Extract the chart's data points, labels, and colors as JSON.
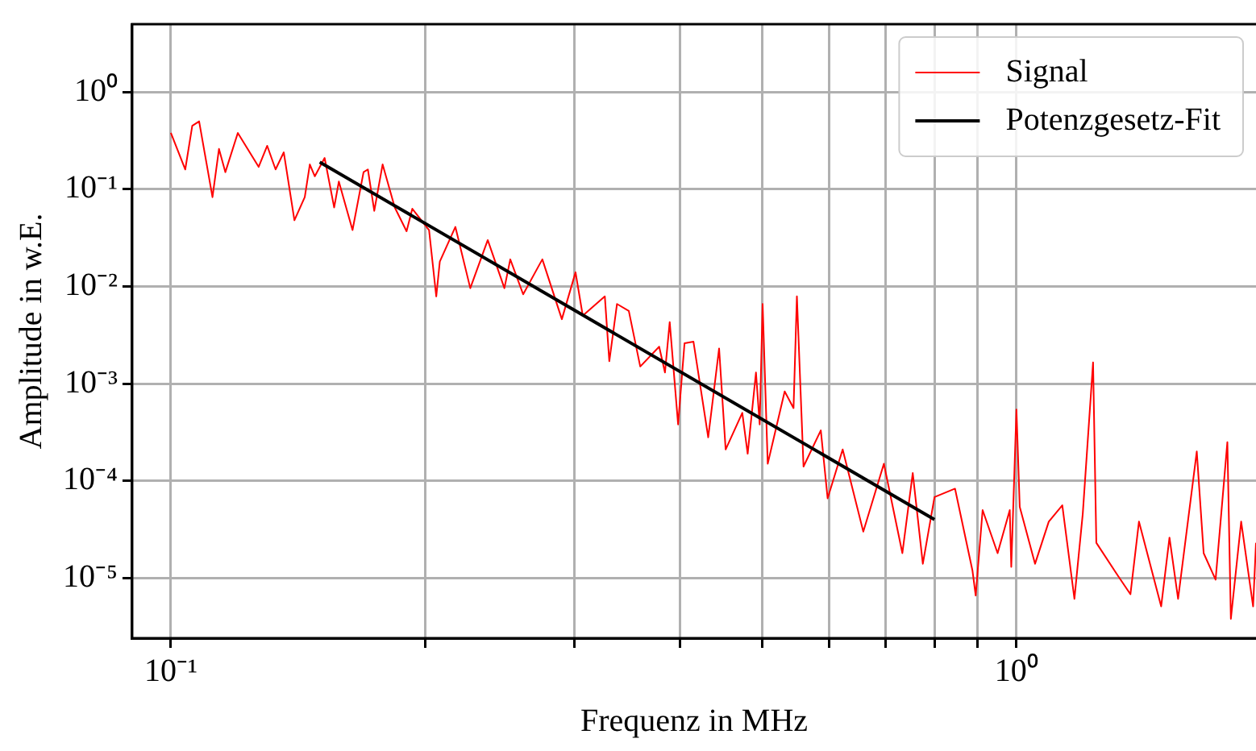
{
  "chart_data": {
    "type": "line",
    "xlabel": "Frequenz in MHz",
    "ylabel": "Amplitude in w.E.",
    "log": "xy",
    "grid": true,
    "legend": "top right",
    "xlim": [
      0.09,
      1.92
    ],
    "ylim": [
      2.4e-06,
      5
    ],
    "xticks": [
      {
        "value": 0.1,
        "label": "10⁻¹"
      },
      {
        "value": 0.2,
        "label": null
      },
      {
        "value": 0.3,
        "label": null
      },
      {
        "value": 0.4,
        "label": null
      },
      {
        "value": 0.5,
        "label": null
      },
      {
        "value": 0.6,
        "label": null
      },
      {
        "value": 0.7,
        "label": null
      },
      {
        "value": 0.8,
        "label": null
      },
      {
        "value": 0.9,
        "label": null
      },
      {
        "value": 1,
        "label": "10⁰"
      }
    ],
    "yticks": [
      {
        "value": 1e-05,
        "label": "10⁻⁵"
      },
      {
        "value": 0.0001,
        "label": "10⁻⁴"
      },
      {
        "value": 0.001,
        "label": "10⁻³"
      },
      {
        "value": 0.01,
        "label": "10⁻²"
      },
      {
        "value": 0.1,
        "label": "10⁻¹"
      },
      {
        "value": 1,
        "label": "10⁰"
      }
    ],
    "series": [
      {
        "name": "Signal",
        "color": "#ff0000",
        "x": [
          0.1,
          0.104,
          0.106,
          0.108,
          0.112,
          0.114,
          0.116,
          0.12,
          0.127,
          0.13,
          0.133,
          0.136,
          0.14,
          0.144,
          0.146,
          0.148,
          0.152,
          0.156,
          0.158,
          0.164,
          0.169,
          0.171,
          0.174,
          0.178,
          0.184,
          0.19,
          0.193,
          0.202,
          0.206,
          0.208,
          0.217,
          0.226,
          0.237,
          0.248,
          0.252,
          0.261,
          0.272,
          0.275,
          0.29,
          0.301,
          0.307,
          0.326,
          0.33,
          0.337,
          0.348,
          0.359,
          0.378,
          0.384,
          0.389,
          0.398,
          0.405,
          0.415,
          0.432,
          0.445,
          0.453,
          0.474,
          0.481,
          0.492,
          0.497,
          0.501,
          0.508,
          0.532,
          0.545,
          0.55,
          0.56,
          0.587,
          0.598,
          0.623,
          0.659,
          0.697,
          0.733,
          0.754,
          0.775,
          0.8,
          0.846,
          0.887,
          0.895,
          0.912,
          0.95,
          0.982,
          0.986,
          1.0,
          1.009,
          1.052,
          1.092,
          1.133,
          1.171,
          1.198,
          1.232,
          1.243,
          1.314,
          1.364,
          1.396,
          1.483,
          1.517,
          1.553,
          1.634,
          1.665,
          1.72,
          1.776,
          1.793,
          1.844,
          1.905,
          1.92
        ],
        "values": [
          0.38,
          0.16,
          0.45,
          0.5,
          0.083,
          0.26,
          0.15,
          0.38,
          0.17,
          0.28,
          0.16,
          0.24,
          0.048,
          0.083,
          0.18,
          0.136,
          0.21,
          0.065,
          0.12,
          0.038,
          0.15,
          0.16,
          0.06,
          0.18,
          0.065,
          0.037,
          0.063,
          0.038,
          0.0079,
          0.018,
          0.041,
          0.0096,
          0.03,
          0.0096,
          0.019,
          0.0083,
          0.016,
          0.019,
          0.0046,
          0.014,
          0.005,
          0.0079,
          0.0017,
          0.0066,
          0.0056,
          0.0015,
          0.0024,
          0.0013,
          0.0043,
          0.00038,
          0.0026,
          0.0027,
          0.00028,
          0.0023,
          0.00021,
          0.0005,
          0.00019,
          0.0013,
          0.00038,
          0.0066,
          0.00015,
          0.00083,
          0.00056,
          0.0079,
          0.00014,
          0.00033,
          6.6e-05,
          0.00021,
          3e-05,
          0.00015,
          1.8e-05,
          0.00012,
          1.4e-05,
          6.8e-05,
          8.3e-05,
          1.2e-05,
          6.6e-06,
          5e-05,
          1.8e-05,
          5e-05,
          1.3e-05,
          0.00054,
          5.4e-05,
          1.4e-05,
          3.8e-05,
          5.6e-05,
          6.1e-06,
          4.6e-05,
          0.00165,
          2.3e-05,
          1.1e-05,
          6.8e-06,
          3.8e-05,
          5.1e-06,
          2.6e-05,
          6.1e-06,
          0.0002,
          1.8e-05,
          9.6e-06,
          0.00025,
          3.8e-06,
          3.8e-05,
          5.1e-06,
          2.3e-05
        ]
      },
      {
        "name": "Potenzgesetz-Fit",
        "color": "#000000",
        "x": [
          0.15,
          0.8
        ],
        "values": [
          0.19,
          4e-05
        ]
      }
    ]
  }
}
